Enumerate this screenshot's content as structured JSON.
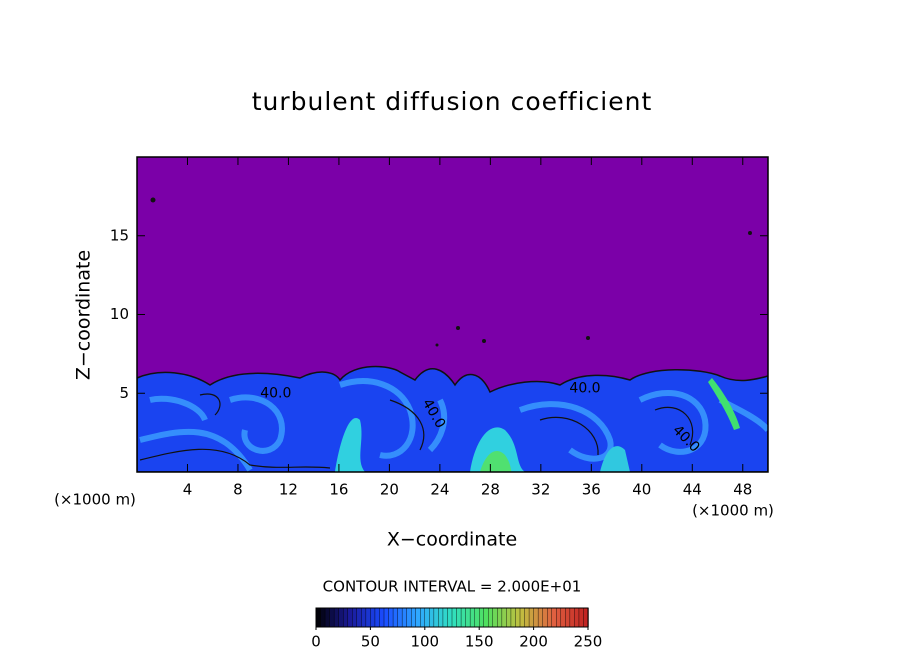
{
  "chart_data": {
    "type": "contour",
    "title": "turbulent diffusion coefficient",
    "xlabel": "X−coordinate",
    "ylabel": "Z−coordinate",
    "x_unit_label": "(×1000 m)",
    "y_unit_label": "(×1000 m)",
    "xlim": [
      0,
      50
    ],
    "ylim": [
      0,
      20
    ],
    "xticks": [
      4,
      8,
      12,
      16,
      20,
      24,
      28,
      32,
      36,
      40,
      44,
      48
    ],
    "yticks": [
      5,
      10,
      15
    ],
    "annotations": [
      {
        "text": "40.0",
        "x": 11,
        "y": 5
      },
      {
        "text": "40.0",
        "x": 35.5,
        "y": 5.3
      },
      {
        "text": "40.0",
        "x": 23.5,
        "y": 3.7
      },
      {
        "text": "40.0",
        "x": 43.5,
        "y": 2.1
      }
    ],
    "colorbar": {
      "label": "CONTOUR INTERVAL = 2.000E+01",
      "lim": [
        0,
        250
      ],
      "ticks": [
        0,
        50,
        100,
        150,
        200,
        250
      ],
      "colors": [
        "#000000",
        "#1a1a9a",
        "#1a4cff",
        "#2fa8ff",
        "#30e0c0",
        "#50e060",
        "#c0c040",
        "#e06040",
        "#c02020"
      ]
    }
  }
}
